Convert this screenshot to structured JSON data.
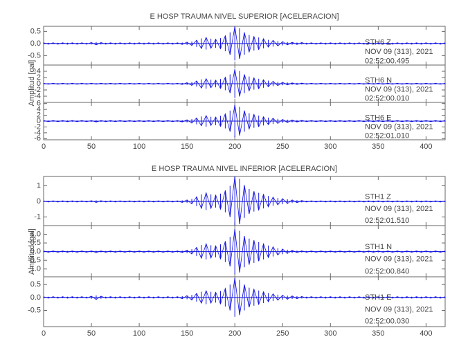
{
  "chart_data": [
    {
      "type": "line",
      "title": "E HOSP TRAUMA NIVEL SUPERIOR [ACELERACION]",
      "ylabel": "Amplitud [gal]",
      "xlim": [
        0,
        420
      ],
      "xticks": [
        0,
        50,
        100,
        150,
        200,
        250,
        300,
        350,
        400
      ],
      "x": [
        0,
        5,
        10,
        15,
        20,
        25,
        30,
        35,
        40,
        45,
        50,
        55,
        60,
        65,
        70,
        75,
        80,
        85,
        90,
        95,
        100,
        105,
        110,
        115,
        120,
        125,
        130,
        135,
        140,
        145,
        150,
        155,
        160,
        165,
        170,
        175,
        180,
        185,
        190,
        195,
        200,
        205,
        210,
        215,
        220,
        225,
        230,
        235,
        240,
        245,
        250,
        255,
        260,
        265,
        270,
        275,
        280,
        285,
        290,
        295,
        300,
        305,
        310,
        315,
        320,
        325,
        330,
        335,
        340,
        345,
        350,
        355,
        360,
        365,
        370,
        375,
        380,
        385,
        390,
        395,
        400,
        405,
        410,
        415,
        420
      ],
      "series": [
        {
          "name": "STH6   Z",
          "date": "NOV 09 (313), 2021",
          "time": "02:52:00.495",
          "color": "#1010e0",
          "ylim": [
            -0.89,
            0.71
          ],
          "yticks": [
            0.5,
            {
              "value": 0,
              "label": "0.0"
            },
            -0.5
          ],
          "values": [
            0.03,
            0.03,
            0.03,
            0.03,
            0.03,
            0.03,
            0.03,
            0.03,
            0.03,
            0.03,
            0.04,
            0.06,
            0.04,
            0.03,
            0.03,
            0.03,
            0.03,
            0.03,
            0.03,
            0.03,
            0.03,
            0.03,
            0.03,
            0.03,
            0.03,
            0.03,
            0.03,
            0.03,
            0.03,
            0.04,
            0.06,
            0.08,
            0.14,
            0.21,
            0.25,
            0.2,
            0.18,
            0.22,
            0.32,
            0.46,
            0.7,
            0.63,
            0.46,
            0.35,
            0.29,
            0.25,
            0.2,
            0.15,
            0.13,
            0.1,
            0.08,
            0.06,
            0.05,
            0.04,
            0.04,
            0.03,
            0.03,
            0.03,
            0.03,
            0.03,
            0.03,
            0.03,
            0.03,
            0.03,
            0.03,
            0.03,
            0.03,
            0.03,
            0.03,
            0.03,
            0.03,
            0.03,
            0.03,
            0.03,
            0.03,
            0.03,
            0.03,
            0.03,
            0.03,
            0.03,
            0.03,
            0.03,
            0.03,
            0.03,
            0.03
          ]
        },
        {
          "name": "STH6   N",
          "date": "NOV 09 (313), 2021",
          "time": "02:52:00.010",
          "color": "#1010e0",
          "ylim": [
            -6,
            6
          ],
          "yticks": [
            4,
            2,
            0,
            -2,
            -4
          ],
          "values": [
            0.15,
            0.15,
            0.15,
            0.15,
            0.15,
            0.15,
            0.15,
            0.15,
            0.15,
            0.15,
            0.15,
            0.15,
            0.15,
            0.15,
            0.15,
            0.15,
            0.15,
            0.15,
            0.15,
            0.15,
            0.15,
            0.15,
            0.15,
            0.15,
            0.15,
            0.15,
            0.15,
            0.15,
            0.15,
            0.25,
            0.35,
            0.55,
            0.9,
            1.4,
            1.6,
            1.3,
            1.15,
            1.5,
            2.1,
            3.0,
            4.6,
            4.1,
            3.0,
            2.3,
            1.9,
            1.6,
            1.3,
            1.0,
            0.8,
            0.6,
            0.5,
            0.4,
            0.3,
            0.25,
            0.2,
            0.15,
            0.15,
            0.15,
            0.15,
            0.15,
            0.15,
            0.15,
            0.15,
            0.15,
            0.15,
            0.15,
            0.15,
            0.15,
            0.15,
            0.15,
            0.15,
            0.15,
            0.15,
            0.15,
            0.15,
            0.15,
            0.15,
            0.15,
            0.15,
            0.15,
            0.15,
            0.15,
            0.15,
            0.15,
            0.15
          ]
        },
        {
          "name": "STH6   E",
          "date": "NOV 09 (313), 2021",
          "time": "02:52:01.010",
          "color": "#1010e0",
          "ylim": [
            -6.4,
            6.4
          ],
          "yticks": [
            6,
            4,
            2,
            0,
            -2,
            -4,
            -6
          ],
          "values": [
            0.2,
            0.2,
            0.2,
            0.2,
            0.2,
            0.2,
            0.2,
            0.2,
            0.2,
            0.2,
            0.2,
            0.3,
            0.2,
            0.2,
            0.2,
            0.2,
            0.2,
            0.2,
            0.2,
            0.2,
            0.2,
            0.2,
            0.2,
            0.2,
            0.2,
            0.2,
            0.2,
            0.2,
            0.2,
            0.3,
            0.45,
            0.7,
            1.1,
            1.6,
            1.9,
            1.5,
            1.4,
            1.8,
            2.5,
            3.6,
            5.5,
            4.9,
            3.6,
            2.7,
            2.3,
            1.9,
            1.5,
            1.2,
            1.0,
            0.8,
            0.6,
            0.5,
            0.4,
            0.3,
            0.25,
            0.2,
            0.2,
            0.2,
            0.2,
            0.2,
            0.2,
            0.2,
            0.2,
            0.2,
            0.2,
            0.2,
            0.2,
            0.2,
            0.2,
            0.2,
            0.2,
            0.2,
            0.2,
            0.2,
            0.2,
            0.2,
            0.2,
            0.2,
            0.2,
            0.2,
            0.2,
            0.2,
            0.2,
            0.2,
            0.2
          ]
        }
      ]
    },
    {
      "type": "line",
      "title": "E HOSP TRAUMA NIVEL INFERIOR [ACELERACION]",
      "ylabel": "Amplitud [gal]",
      "xlim": [
        0,
        420
      ],
      "xticks": [
        0,
        50,
        100,
        150,
        200,
        250,
        300,
        350,
        400
      ],
      "x": [
        0,
        5,
        10,
        15,
        20,
        25,
        30,
        35,
        40,
        45,
        50,
        55,
        60,
        65,
        70,
        75,
        80,
        85,
        90,
        95,
        100,
        105,
        110,
        115,
        120,
        125,
        130,
        135,
        140,
        145,
        150,
        155,
        160,
        165,
        170,
        175,
        180,
        185,
        190,
        195,
        200,
        205,
        210,
        215,
        220,
        225,
        230,
        235,
        240,
        245,
        250,
        255,
        260,
        265,
        270,
        275,
        280,
        285,
        290,
        295,
        300,
        305,
        310,
        315,
        320,
        325,
        330,
        335,
        340,
        345,
        350,
        355,
        360,
        365,
        370,
        375,
        380,
        385,
        390,
        395,
        400,
        405,
        410,
        415,
        420
      ],
      "series": [
        {
          "name": "STH1   Z",
          "date": "NOV 09 (313), 2021",
          "time": "02:52:01.510",
          "color": "#1010e0",
          "ylim": [
            -1.55,
            1.6
          ],
          "yticks": [
            1,
            0,
            -1
          ],
          "values": [
            0.04,
            0.04,
            0.04,
            0.04,
            0.04,
            0.04,
            0.04,
            0.04,
            0.04,
            0.04,
            0.05,
            0.07,
            0.05,
            0.04,
            0.04,
            0.04,
            0.04,
            0.04,
            0.04,
            0.04,
            0.04,
            0.04,
            0.04,
            0.04,
            0.04,
            0.04,
            0.04,
            0.04,
            0.04,
            0.07,
            0.1,
            0.16,
            0.3,
            0.45,
            0.55,
            0.45,
            0.4,
            0.5,
            0.7,
            1.0,
            1.6,
            1.45,
            1.05,
            0.8,
            0.65,
            0.55,
            0.45,
            0.35,
            0.28,
            0.22,
            0.18,
            0.14,
            0.1,
            0.08,
            0.06,
            0.04,
            0.04,
            0.04,
            0.04,
            0.04,
            0.04,
            0.04,
            0.04,
            0.04,
            0.04,
            0.04,
            0.04,
            0.04,
            0.04,
            0.04,
            0.04,
            0.04,
            0.04,
            0.04,
            0.04,
            0.04,
            0.04,
            0.04,
            0.04,
            0.04,
            0.04,
            0.04,
            0.04,
            0.04,
            0.04
          ]
        },
        {
          "name": "STH1   N",
          "date": "NOV 09 (313), 2021",
          "time": "02:52:00.840",
          "color": "#1010e0",
          "ylim": [
            -1.45,
            1.5
          ],
          "yticks": [
            {
              "value": 1,
              "label": "1.0"
            },
            0.5,
            {
              "value": 0,
              "label": "0.0"
            },
            -0.5,
            {
              "value": -1,
              "label": "-1.0"
            }
          ],
          "values": [
            0.04,
            0.04,
            0.04,
            0.04,
            0.04,
            0.04,
            0.04,
            0.04,
            0.04,
            0.04,
            0.04,
            0.05,
            0.04,
            0.04,
            0.04,
            0.04,
            0.04,
            0.04,
            0.04,
            0.04,
            0.04,
            0.04,
            0.04,
            0.04,
            0.04,
            0.04,
            0.04,
            0.04,
            0.04,
            0.06,
            0.09,
            0.14,
            0.25,
            0.38,
            0.45,
            0.37,
            0.33,
            0.42,
            0.6,
            0.85,
            1.3,
            1.2,
            0.9,
            0.75,
            0.65,
            0.55,
            0.45,
            0.35,
            0.28,
            0.2,
            0.15,
            0.11,
            0.08,
            0.06,
            0.05,
            0.04,
            0.04,
            0.04,
            0.04,
            0.04,
            0.04,
            0.04,
            0.04,
            0.04,
            0.04,
            0.04,
            0.04,
            0.04,
            0.04,
            0.04,
            0.04,
            0.04,
            0.04,
            0.04,
            0.04,
            0.04,
            0.04,
            0.04,
            0.04,
            0.04,
            0.04,
            0.04,
            0.04,
            0.04,
            0.04
          ]
        },
        {
          "name": "STH1   E",
          "date": "NOV 09 (313), 2021",
          "time": "02:52:00.030",
          "color": "#1010e0",
          "ylim": [
            -1.13,
            0.8
          ],
          "yticks": [
            0.5,
            {
              "value": 0,
              "label": "0.0"
            },
            -0.5
          ],
          "values": [
            0.03,
            0.03,
            0.03,
            0.03,
            0.03,
            0.03,
            0.03,
            0.03,
            0.03,
            0.03,
            0.05,
            0.08,
            0.05,
            0.03,
            0.03,
            0.03,
            0.03,
            0.03,
            0.03,
            0.03,
            0.03,
            0.03,
            0.03,
            0.03,
            0.03,
            0.03,
            0.03,
            0.03,
            0.03,
            0.05,
            0.07,
            0.1,
            0.16,
            0.22,
            0.26,
            0.22,
            0.2,
            0.25,
            0.35,
            0.5,
            0.75,
            0.68,
            0.5,
            0.38,
            0.32,
            0.27,
            0.22,
            0.17,
            0.14,
            0.11,
            0.09,
            0.07,
            0.06,
            0.05,
            0.04,
            0.03,
            0.03,
            0.03,
            0.03,
            0.03,
            0.03,
            0.03,
            0.03,
            0.03,
            0.03,
            0.03,
            0.03,
            0.03,
            0.03,
            0.03,
            0.03,
            0.03,
            0.03,
            0.03,
            0.03,
            0.03,
            0.03,
            0.03,
            0.03,
            0.03,
            0.03,
            0.03,
            0.03,
            0.03,
            0.03
          ]
        }
      ]
    }
  ]
}
